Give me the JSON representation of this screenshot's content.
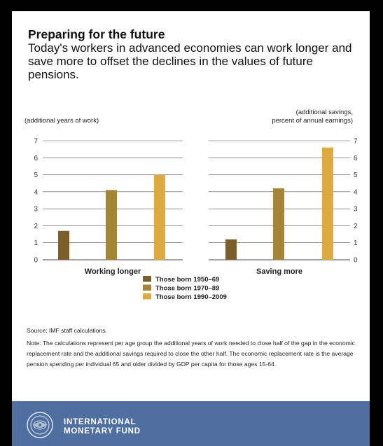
{
  "header": {
    "title": "Preparing for the future",
    "subtitle": "Today's workers in advanced economies can work longer and save more to offset the declines in the values of future pensions."
  },
  "colors": {
    "series": [
      "#7b5f2a",
      "#a58437",
      "#dcaa3e"
    ],
    "footer": "#4f6fa0"
  },
  "chart_data": [
    {
      "type": "bar",
      "ylabel": "(additional years of work)",
      "xlabel": "Working longer",
      "ylim": [
        0,
        7
      ],
      "yticks": [
        "0",
        "1",
        "2",
        "3",
        "4",
        "5",
        "6",
        "7"
      ],
      "series": [
        {
          "name": "Those born 1950–69",
          "values": [
            1.7
          ]
        },
        {
          "name": "Those born 1970–89",
          "values": [
            4.1
          ]
        },
        {
          "name": "Those born 1990–2009",
          "values": [
            5.0
          ]
        }
      ],
      "grid": true
    },
    {
      "type": "bar",
      "ylabel_lines": [
        "(additional savings,",
        "percent of annual earnings)"
      ],
      "xlabel": "Saving more",
      "ylim": [
        0,
        7
      ],
      "yticks": [
        "0",
        "1",
        "2",
        "3",
        "4",
        "5",
        "6",
        "7"
      ],
      "series": [
        {
          "name": "Those born 1950–69",
          "values": [
            1.2
          ]
        },
        {
          "name": "Those born 1970–89",
          "values": [
            4.2
          ]
        },
        {
          "name": "Those born 1990–2009",
          "values": [
            6.6
          ]
        }
      ],
      "grid": true
    }
  ],
  "legend": {
    "items": [
      "Those born 1950–69",
      "Those born 1970–89",
      "Those born 1990–2009"
    ]
  },
  "source": "Source: IMF staff calculations.",
  "note": "Note: The calculations represent per age group the additional years of work needed to close half of the gap in the economic replacement rate and the additional savings required to close the other half. The economic replacement rate is the average pension spending per individual 65 and older divided by GDP per capita for those ages 15-64.",
  "footer": {
    "org_line1": "INTERNATIONAL",
    "org_line2": "MONETARY FUND",
    "seal_icon": "imf-seal-icon"
  }
}
